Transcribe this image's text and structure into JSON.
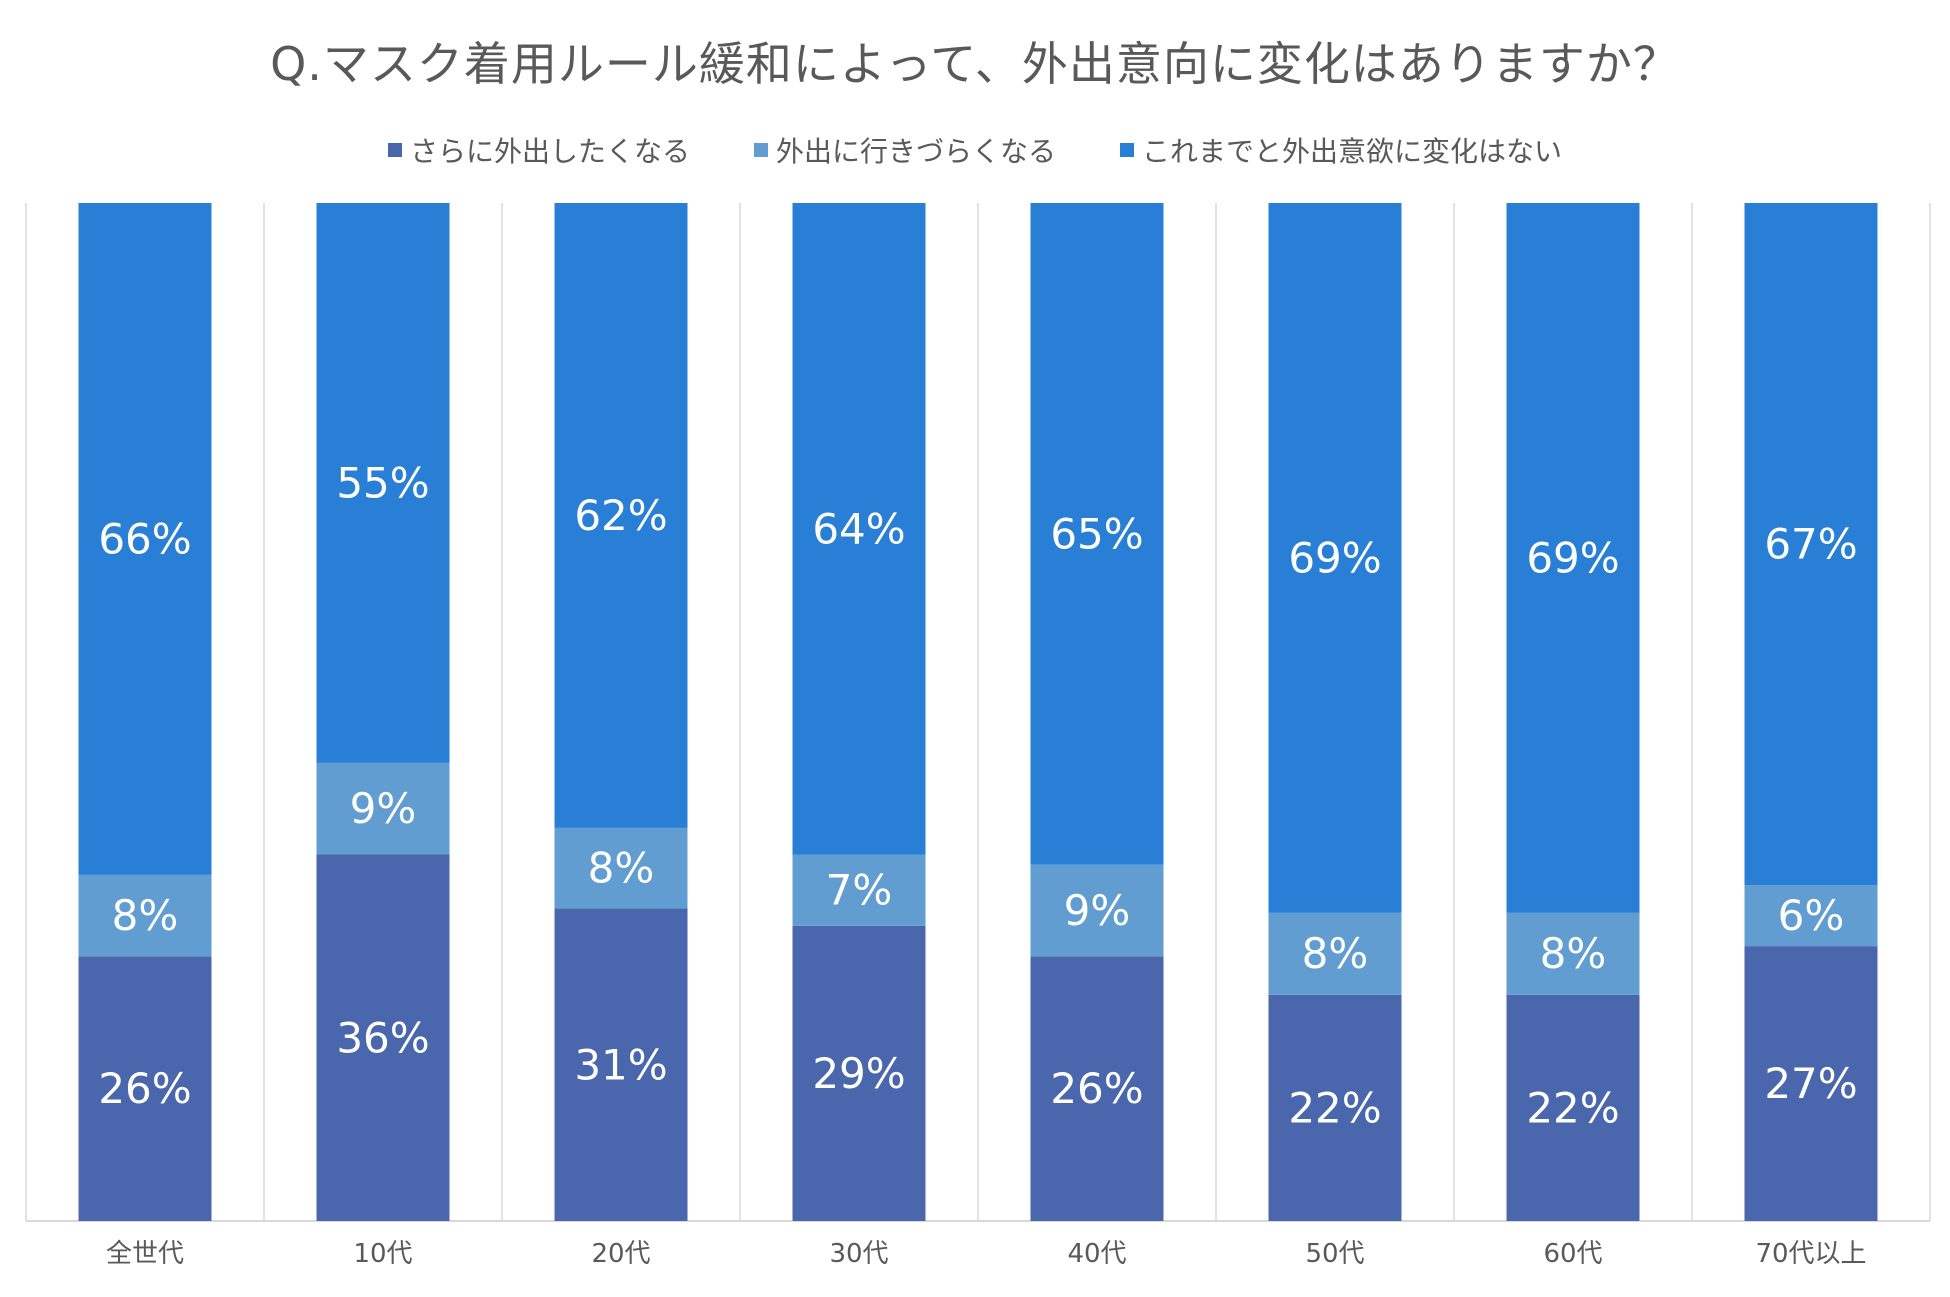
{
  "chart_data": {
    "type": "bar",
    "stacked": true,
    "percent": true,
    "title": "Q.マスク着用ルール緩和によって、外出意向に変化はありますか？",
    "categories": [
      "全世代",
      "10代",
      "20代",
      "30代",
      "40代",
      "50代",
      "60代",
      "70代以上"
    ],
    "series": [
      {
        "name": "さらに外出したくなる",
        "color": "#4A66AC",
        "values": [
          26,
          36,
          31,
          29,
          26,
          22,
          22,
          27
        ],
        "labels": [
          "26%",
          "36%",
          "31%",
          "29%",
          "26%",
          "22%",
          "22%",
          "27%"
        ]
      },
      {
        "name": "外出に行きづらくなる",
        "color": "#629DD1",
        "values": [
          8,
          9,
          8,
          7,
          9,
          8,
          8,
          6
        ],
        "labels": [
          "8%",
          "9%",
          "8%",
          "7%",
          "9%",
          "8%",
          "8%",
          "6%"
        ]
      },
      {
        "name": "これまでと外出意欲に変化はない",
        "color": "#297FD5",
        "values": [
          66,
          55,
          62,
          64,
          65,
          69,
          69,
          67
        ],
        "labels": [
          "66%",
          "55%",
          "62%",
          "64%",
          "65%",
          "69%",
          "69%",
          "67%"
        ]
      }
    ],
    "ylim": [
      0,
      100
    ],
    "xlabel": "",
    "ylabel": "",
    "legend_position": "top",
    "grid": false
  }
}
